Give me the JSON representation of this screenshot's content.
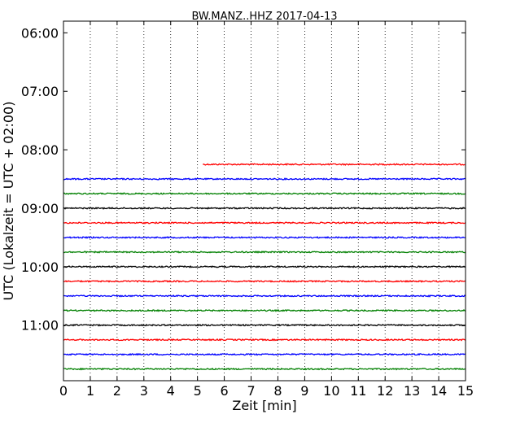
{
  "chart_data": {
    "type": "line",
    "title": "BW.MANZ..HHZ 2017-04-13",
    "xlabel": "Zeit  [min]",
    "ylabel": "UTC (Lokalzeit = UTC + 02:00)",
    "xlim": [
      0,
      15
    ],
    "x_ticks": [
      0,
      1,
      2,
      3,
      4,
      5,
      6,
      7,
      8,
      9,
      10,
      11,
      12,
      13,
      14,
      15
    ],
    "y_ticks": [
      {
        "label": "06:00",
        "hour": 6.0
      },
      {
        "label": "07:00",
        "hour": 7.0
      },
      {
        "label": "08:00",
        "hour": 8.0
      },
      {
        "label": "09:00",
        "hour": 9.0
      },
      {
        "label": "10:00",
        "hour": 10.0
      },
      {
        "label": "11:00",
        "hour": 11.0
      }
    ],
    "ylim_hours": [
      5.8,
      11.95
    ],
    "grid": "vertical-dotted",
    "traces": [
      {
        "hour": 8.25,
        "start_min": 5.2,
        "end_min": 15,
        "color": "#ff0000"
      },
      {
        "hour": 8.5,
        "start_min": 0,
        "end_min": 15,
        "color": "#0000ff"
      },
      {
        "hour": 8.75,
        "start_min": 0,
        "end_min": 15,
        "color": "#008000"
      },
      {
        "hour": 9.0,
        "start_min": 0,
        "end_min": 15,
        "color": "#000000"
      },
      {
        "hour": 9.25,
        "start_min": 0,
        "end_min": 15,
        "color": "#ff0000"
      },
      {
        "hour": 9.5,
        "start_min": 0,
        "end_min": 15,
        "color": "#0000ff"
      },
      {
        "hour": 9.75,
        "start_min": 0,
        "end_min": 15,
        "color": "#008000"
      },
      {
        "hour": 10.0,
        "start_min": 0,
        "end_min": 15,
        "color": "#000000"
      },
      {
        "hour": 10.25,
        "start_min": 0,
        "end_min": 15,
        "color": "#ff0000"
      },
      {
        "hour": 10.5,
        "start_min": 0,
        "end_min": 15,
        "color": "#0000ff"
      },
      {
        "hour": 10.75,
        "start_min": 0,
        "end_min": 15,
        "color": "#008000"
      },
      {
        "hour": 11.0,
        "start_min": 0,
        "end_min": 15,
        "color": "#000000"
      },
      {
        "hour": 11.25,
        "start_min": 0,
        "end_min": 15,
        "color": "#ff0000"
      },
      {
        "hour": 11.5,
        "start_min": 0,
        "end_min": 15,
        "color": "#0000ff"
      },
      {
        "hour": 11.75,
        "start_min": 0,
        "end_min": 15,
        "color": "#008000"
      }
    ]
  }
}
